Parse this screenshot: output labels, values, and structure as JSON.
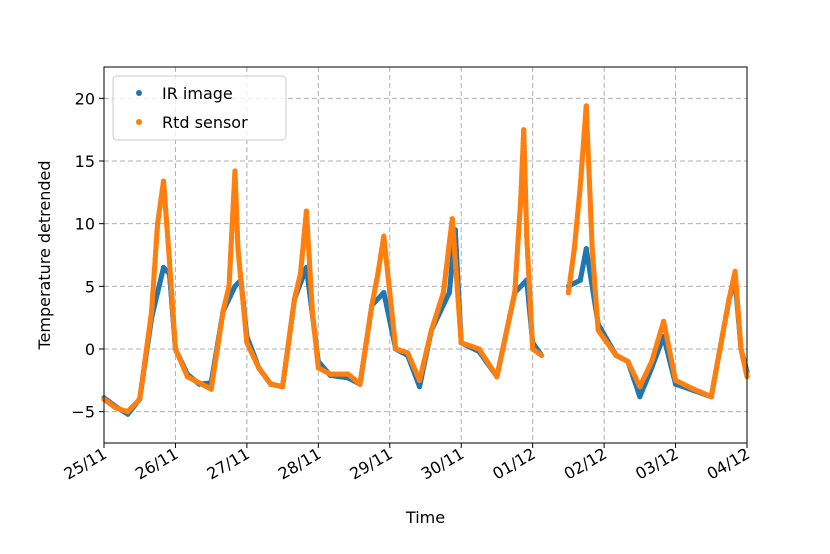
{
  "chart_data": {
    "type": "scatter",
    "xlabel": "Time",
    "ylabel": "Temperature detrended",
    "xlim": [
      "2021-11-25",
      "2021-12-04"
    ],
    "ylim": [
      -7.5,
      22.5
    ],
    "x_ticks": [
      "25/11",
      "26/11",
      "27/11",
      "28/11",
      "29/11",
      "30/11",
      "01/12",
      "02/12",
      "03/12",
      "04/12"
    ],
    "y_ticks": [
      -5,
      0,
      5,
      10,
      15,
      20
    ],
    "grid": true,
    "legend_position": "top-left",
    "series": [
      {
        "name": "IR image",
        "color": "#1f77b4",
        "points": [
          [
            "2021-11-25 00:00",
            -3.9
          ],
          [
            "2021-11-25 04:00",
            -4.6
          ],
          [
            "2021-11-25 08:00",
            -5.2
          ],
          [
            "2021-11-25 12:00",
            -4.0
          ],
          [
            "2021-11-25 16:00",
            2.5
          ],
          [
            "2021-11-25 20:00",
            6.5
          ],
          [
            "2021-11-25 22:00",
            6.0
          ],
          [
            "2021-11-26 00:00",
            0.0
          ],
          [
            "2021-11-26 04:00",
            -2.0
          ],
          [
            "2021-11-26 08:00",
            -2.8
          ],
          [
            "2021-11-26 12:00",
            -2.7
          ],
          [
            "2021-11-26 16:00",
            3.0
          ],
          [
            "2021-11-26 20:00",
            5.0
          ],
          [
            "2021-11-26 22:00",
            5.5
          ],
          [
            "2021-11-27 00:00",
            1.0
          ],
          [
            "2021-11-27 04:00",
            -1.5
          ],
          [
            "2021-11-27 08:00",
            -2.8
          ],
          [
            "2021-11-27 12:00",
            -3.0
          ],
          [
            "2021-11-27 16:00",
            4.0
          ],
          [
            "2021-11-27 20:00",
            6.5
          ],
          [
            "2021-11-28 00:00",
            -1.0
          ],
          [
            "2021-11-28 04:00",
            -2.1
          ],
          [
            "2021-11-28 10:00",
            -2.3
          ],
          [
            "2021-11-28 14:00",
            -2.8
          ],
          [
            "2021-11-28 18:00",
            3.5
          ],
          [
            "2021-11-28 22:00",
            4.5
          ],
          [
            "2021-11-29 02:00",
            0.0
          ],
          [
            "2021-11-29 06:00",
            -0.5
          ],
          [
            "2021-11-29 10:00",
            -3.0
          ],
          [
            "2021-11-29 14:00",
            1.5
          ],
          [
            "2021-11-29 20:00",
            4.5
          ],
          [
            "2021-11-29 22:00",
            9.5
          ],
          [
            "2021-11-30 00:00",
            0.5
          ],
          [
            "2021-11-30 06:00",
            -0.2
          ],
          [
            "2021-11-30 12:00",
            -2.2
          ],
          [
            "2021-11-30 18:00",
            4.5
          ],
          [
            "2021-11-30 22:00",
            5.5
          ],
          [
            "2021-12-01 00:00",
            0.5
          ],
          [
            "2021-12-01 03:00",
            -0.5
          ],
          [
            "2021-12-01 12:00",
            5.0
          ],
          [
            "2021-12-01 16:00",
            5.5
          ],
          [
            "2021-12-01 18:00",
            8.0
          ],
          [
            "2021-12-01 22:00",
            2.0
          ],
          [
            "2021-12-02 04:00",
            -0.5
          ],
          [
            "2021-12-02 08:00",
            -1.0
          ],
          [
            "2021-12-02 12:00",
            -3.8
          ],
          [
            "2021-12-02 16:00",
            -1.5
          ],
          [
            "2021-12-02 20:00",
            1.0
          ],
          [
            "2021-12-03 00:00",
            -2.8
          ],
          [
            "2021-12-03 06:00",
            -3.3
          ],
          [
            "2021-12-03 12:00",
            -3.8
          ],
          [
            "2021-12-03 18:00",
            4.0
          ],
          [
            "2021-12-03 20:00",
            5.5
          ],
          [
            "2021-12-03 22:00",
            0.0
          ],
          [
            "2021-12-04 00:00",
            -1.8
          ]
        ]
      },
      {
        "name": "Rtd sensor",
        "color": "#ff7f0e",
        "points": [
          [
            "2021-11-25 00:00",
            -4.0
          ],
          [
            "2021-11-25 04:00",
            -4.7
          ],
          [
            "2021-11-25 08:00",
            -5.0
          ],
          [
            "2021-11-25 12:00",
            -4.0
          ],
          [
            "2021-11-25 16:00",
            3.0
          ],
          [
            "2021-11-25 18:00",
            10.0
          ],
          [
            "2021-11-25 20:00",
            13.4
          ],
          [
            "2021-11-25 22:00",
            7.0
          ],
          [
            "2021-11-26 00:00",
            0.0
          ],
          [
            "2021-11-26 04:00",
            -2.2
          ],
          [
            "2021-11-26 08:00",
            -2.7
          ],
          [
            "2021-11-26 12:00",
            -3.2
          ],
          [
            "2021-11-26 16:00",
            3.0
          ],
          [
            "2021-11-26 18:00",
            5.0
          ],
          [
            "2021-11-26 20:00",
            14.2
          ],
          [
            "2021-11-26 21:00",
            8.0
          ],
          [
            "2021-11-27 00:00",
            0.5
          ],
          [
            "2021-11-27 04:00",
            -1.5
          ],
          [
            "2021-11-27 08:00",
            -2.8
          ],
          [
            "2021-11-27 12:00",
            -3.0
          ],
          [
            "2021-11-27 16:00",
            4.0
          ],
          [
            "2021-11-27 18:00",
            6.0
          ],
          [
            "2021-11-27 20:00",
            11.0
          ],
          [
            "2021-11-27 22:00",
            3.0
          ],
          [
            "2021-11-28 00:00",
            -1.5
          ],
          [
            "2021-11-28 04:00",
            -2.0
          ],
          [
            "2021-11-28 10:00",
            -2.0
          ],
          [
            "2021-11-28 14:00",
            -2.8
          ],
          [
            "2021-11-28 18:00",
            3.5
          ],
          [
            "2021-11-28 20:00",
            6.0
          ],
          [
            "2021-11-28 22:00",
            9.0
          ],
          [
            "2021-11-29 02:00",
            0.0
          ],
          [
            "2021-11-29 06:00",
            -0.3
          ],
          [
            "2021-11-29 10:00",
            -2.5
          ],
          [
            "2021-11-29 14:00",
            1.5
          ],
          [
            "2021-11-29 18:00",
            4.5
          ],
          [
            "2021-11-29 21:00",
            10.4
          ],
          [
            "2021-11-30 00:00",
            0.5
          ],
          [
            "2021-11-30 06:00",
            0.0
          ],
          [
            "2021-11-30 12:00",
            -2.2
          ],
          [
            "2021-11-30 18:00",
            4.5
          ],
          [
            "2021-11-30 20:00",
            12.0
          ],
          [
            "2021-11-30 21:00",
            17.5
          ],
          [
            "2021-11-30 22:00",
            9.0
          ],
          [
            "2021-12-01 00:00",
            0.0
          ],
          [
            "2021-12-01 03:00",
            -0.5
          ],
          [
            "2021-12-01 12:00",
            4.5
          ],
          [
            "2021-12-01 14:00",
            8.0
          ],
          [
            "2021-12-01 16:00",
            13.0
          ],
          [
            "2021-12-01 18:00",
            19.4
          ],
          [
            "2021-12-01 20:00",
            8.0
          ],
          [
            "2021-12-01 22:00",
            1.5
          ],
          [
            "2021-12-02 04:00",
            -0.5
          ],
          [
            "2021-12-02 08:00",
            -1.0
          ],
          [
            "2021-12-02 12:00",
            -3.0
          ],
          [
            "2021-12-02 16:00",
            -1.0
          ],
          [
            "2021-12-02 20:00",
            2.2
          ],
          [
            "2021-12-03 00:00",
            -2.5
          ],
          [
            "2021-12-03 06:00",
            -3.2
          ],
          [
            "2021-12-03 12:00",
            -3.8
          ],
          [
            "2021-12-03 18:00",
            4.0
          ],
          [
            "2021-12-03 20:00",
            6.2
          ],
          [
            "2021-12-03 22:00",
            0.0
          ],
          [
            "2021-12-04 00:00",
            -2.2
          ]
        ]
      }
    ]
  }
}
